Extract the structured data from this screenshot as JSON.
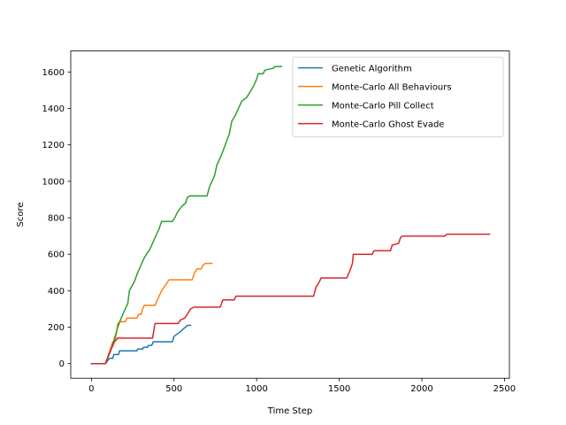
{
  "chart_data": {
    "type": "line",
    "title": "",
    "xlabel": "Time Step",
    "ylabel": "Score",
    "xlim": [
      -125,
      2530
    ],
    "ylim": [
      -80,
      1715
    ],
    "xticks": [
      0,
      500,
      1000,
      1500,
      2000,
      2500
    ],
    "yticks": [
      0,
      200,
      400,
      600,
      800,
      1000,
      1200,
      1400,
      1600
    ],
    "grid": false,
    "legend_position": "upper right",
    "series": [
      {
        "name": "Genetic Algorithm",
        "color": "#1f77b4",
        "points": [
          [
            0,
            0
          ],
          [
            85,
            0
          ],
          [
            110,
            30
          ],
          [
            130,
            30
          ],
          [
            135,
            50
          ],
          [
            165,
            50
          ],
          [
            170,
            70
          ],
          [
            275,
            70
          ],
          [
            280,
            80
          ],
          [
            310,
            80
          ],
          [
            315,
            90
          ],
          [
            340,
            90
          ],
          [
            345,
            100
          ],
          [
            365,
            100
          ],
          [
            375,
            120
          ],
          [
            490,
            120
          ],
          [
            500,
            150
          ],
          [
            515,
            160
          ],
          [
            530,
            170
          ],
          [
            545,
            180
          ],
          [
            555,
            190
          ],
          [
            570,
            200
          ],
          [
            580,
            210
          ],
          [
            600,
            210
          ]
        ]
      },
      {
        "name": "Monte-Carlo All Behaviours",
        "color": "#ff7f0e",
        "points": [
          [
            0,
            0
          ],
          [
            85,
            0
          ],
          [
            100,
            40
          ],
          [
            130,
            120
          ],
          [
            145,
            130
          ],
          [
            160,
            220
          ],
          [
            175,
            230
          ],
          [
            205,
            230
          ],
          [
            215,
            250
          ],
          [
            275,
            250
          ],
          [
            285,
            270
          ],
          [
            300,
            270
          ],
          [
            310,
            300
          ],
          [
            320,
            320
          ],
          [
            385,
            320
          ],
          [
            410,
            370
          ],
          [
            425,
            400
          ],
          [
            440,
            420
          ],
          [
            455,
            440
          ],
          [
            470,
            460
          ],
          [
            610,
            460
          ],
          [
            625,
            500
          ],
          [
            640,
            520
          ],
          [
            665,
            520
          ],
          [
            675,
            540
          ],
          [
            690,
            550
          ],
          [
            730,
            550
          ]
        ]
      },
      {
        "name": "Monte-Carlo Pill Collect",
        "color": "#2ca02c",
        "points": [
          [
            0,
            0
          ],
          [
            85,
            0
          ],
          [
            120,
            80
          ],
          [
            160,
            200
          ],
          [
            180,
            250
          ],
          [
            200,
            290
          ],
          [
            220,
            330
          ],
          [
            230,
            400
          ],
          [
            260,
            450
          ],
          [
            280,
            500
          ],
          [
            300,
            540
          ],
          [
            320,
            580
          ],
          [
            340,
            610
          ],
          [
            350,
            620
          ],
          [
            365,
            650
          ],
          [
            380,
            680
          ],
          [
            395,
            710
          ],
          [
            410,
            740
          ],
          [
            425,
            780
          ],
          [
            490,
            780
          ],
          [
            505,
            800
          ],
          [
            520,
            830
          ],
          [
            545,
            860
          ],
          [
            555,
            870
          ],
          [
            570,
            880
          ],
          [
            580,
            910
          ],
          [
            595,
            920
          ],
          [
            700,
            920
          ],
          [
            715,
            970
          ],
          [
            730,
            1000
          ],
          [
            745,
            1030
          ],
          [
            760,
            1090
          ],
          [
            790,
            1150
          ],
          [
            810,
            1200
          ],
          [
            835,
            1260
          ],
          [
            850,
            1330
          ],
          [
            870,
            1360
          ],
          [
            890,
            1400
          ],
          [
            910,
            1440
          ],
          [
            940,
            1460
          ],
          [
            960,
            1490
          ],
          [
            980,
            1520
          ],
          [
            1000,
            1560
          ],
          [
            1010,
            1590
          ],
          [
            1040,
            1590
          ],
          [
            1050,
            1610
          ],
          [
            1100,
            1620
          ],
          [
            1110,
            1630
          ],
          [
            1150,
            1630
          ]
        ]
      },
      {
        "name": "Monte-Carlo Ghost Evade",
        "color": "#d62728",
        "points": [
          [
            0,
            0
          ],
          [
            85,
            0
          ],
          [
            110,
            60
          ],
          [
            140,
            120
          ],
          [
            160,
            140
          ],
          [
            370,
            140
          ],
          [
            385,
            220
          ],
          [
            525,
            220
          ],
          [
            540,
            240
          ],
          [
            565,
            250
          ],
          [
            580,
            270
          ],
          [
            600,
            300
          ],
          [
            620,
            310
          ],
          [
            780,
            310
          ],
          [
            795,
            350
          ],
          [
            865,
            350
          ],
          [
            875,
            370
          ],
          [
            1345,
            370
          ],
          [
            1360,
            420
          ],
          [
            1380,
            450
          ],
          [
            1390,
            470
          ],
          [
            1545,
            470
          ],
          [
            1565,
            510
          ],
          [
            1580,
            550
          ],
          [
            1585,
            600
          ],
          [
            1700,
            600
          ],
          [
            1710,
            620
          ],
          [
            1810,
            620
          ],
          [
            1820,
            650
          ],
          [
            1860,
            660
          ],
          [
            1870,
            690
          ],
          [
            1880,
            700
          ],
          [
            2140,
            700
          ],
          [
            2150,
            710
          ],
          [
            2410,
            710
          ]
        ]
      }
    ]
  }
}
